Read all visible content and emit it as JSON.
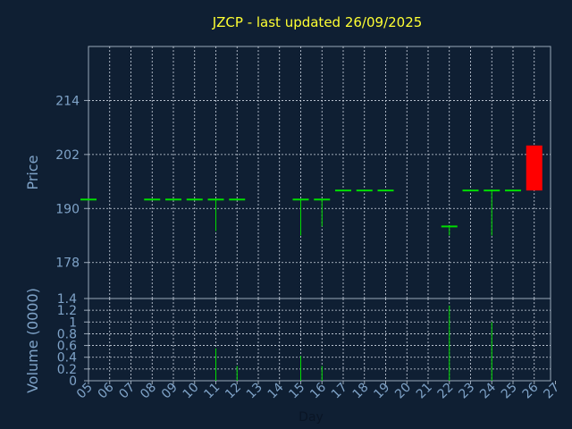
{
  "chart_data": {
    "type": "candlestick",
    "title": "JZCP - last updated 26/09/2025",
    "xlabel": "Day",
    "price_panel": {
      "ylabel": "Price",
      "ylim": [
        170,
        226
      ],
      "yticks": [
        178,
        190,
        202,
        214
      ],
      "grid": true
    },
    "volume_panel": {
      "ylabel": "Volume (0000)",
      "ylim": [
        0,
        1.4
      ],
      "yticks": [
        0,
        0.2,
        0.4,
        0.6,
        0.8,
        1,
        1.2,
        1.4
      ],
      "ytick_labels": [
        "0",
        "0.2",
        "0.4",
        "0.6",
        "0.8",
        "1",
        "1.2",
        "1.4"
      ],
      "grid": true
    },
    "x_categories": [
      "05",
      "06",
      "07",
      "08",
      "09",
      "10",
      "11",
      "12",
      "13",
      "14",
      "15",
      "16",
      "17",
      "18",
      "19",
      "20",
      "21",
      "22",
      "23",
      "24",
      "25",
      "26",
      "27"
    ],
    "candles": [
      {
        "day": "05",
        "open": 192,
        "high": 192,
        "low": 192,
        "close": 192,
        "volume": 0
      },
      {
        "day": "08",
        "open": 192,
        "high": 192,
        "low": 192,
        "close": 192,
        "volume": 0
      },
      {
        "day": "09",
        "open": 192,
        "high": 192,
        "low": 192,
        "close": 192,
        "volume": 0
      },
      {
        "day": "10",
        "open": 192,
        "high": 192,
        "low": 192,
        "close": 192,
        "volume": 0
      },
      {
        "day": "11",
        "open": 192,
        "high": 192,
        "low": 185,
        "close": 192,
        "volume": 0.55
      },
      {
        "day": "12",
        "open": 192,
        "high": 192,
        "low": 192,
        "close": 192,
        "volume": 0.25
      },
      {
        "day": "15",
        "open": 192,
        "high": 192,
        "low": 184,
        "close": 192,
        "volume": 0.42
      },
      {
        "day": "16",
        "open": 192,
        "high": 192,
        "low": 186,
        "close": 192,
        "volume": 0.25
      },
      {
        "day": "17",
        "open": 194,
        "high": 194,
        "low": 194,
        "close": 194,
        "volume": 0
      },
      {
        "day": "18",
        "open": 194,
        "high": 194,
        "low": 194,
        "close": 194,
        "volume": 0
      },
      {
        "day": "19",
        "open": 194,
        "high": 194,
        "low": 194,
        "close": 194,
        "volume": 0
      },
      {
        "day": "22",
        "open": 186,
        "high": 186,
        "low": 184,
        "close": 186,
        "volume": 1.28
      },
      {
        "day": "23",
        "open": 194,
        "high": 194,
        "low": 194,
        "close": 194,
        "volume": 0
      },
      {
        "day": "24",
        "open": 194,
        "high": 194,
        "low": 184,
        "close": 194,
        "volume": 1.0
      },
      {
        "day": "25",
        "open": 194,
        "high": 194,
        "low": 194,
        "close": 194,
        "volume": 0
      },
      {
        "day": "26",
        "open": 204,
        "high": 204,
        "low": 194,
        "close": 194,
        "volume": 0
      }
    ],
    "colors": {
      "background": "#0f1f33",
      "grid": "#cfd8e3",
      "axis_text": "#7fa3c8",
      "title": "#ffff33",
      "up": "#00dd00",
      "down": "#ff0000"
    }
  }
}
